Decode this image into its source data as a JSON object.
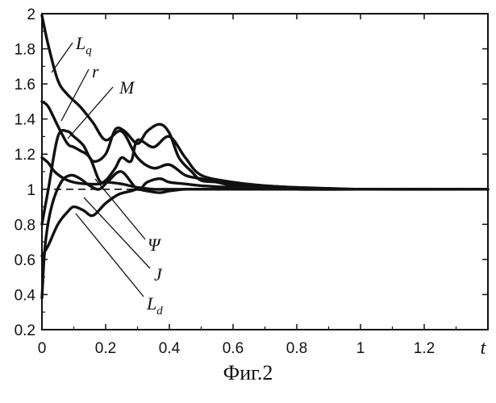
{
  "caption": "Фиг.2",
  "chart_data": {
    "type": "line",
    "xlabel": "t",
    "ylabel": "",
    "xlim": [
      0,
      1.4
    ],
    "ylim": [
      0.2,
      2.0
    ],
    "xticks": [
      0,
      0.2,
      0.4,
      0.6,
      0.8,
      1,
      1.2
    ],
    "xtick_labels": [
      "0",
      "0.2",
      "0.4",
      "0.6",
      "0.8",
      "1",
      "1.2"
    ],
    "yticks": [
      0.2,
      0.4,
      0.6,
      0.8,
      1,
      1.2,
      1.4,
      1.6,
      1.8,
      2
    ],
    "ytick_labels": [
      "0.2",
      "0.4",
      "0.6",
      "0.8",
      "1",
      "1.2",
      "1.4",
      "1.6",
      "1.8",
      "2"
    ],
    "reference_line": {
      "y": 1,
      "style": "dashed"
    },
    "series": [
      {
        "name": "L_q",
        "label_main": "L",
        "label_sub": "q",
        "x": [
          0,
          0.02,
          0.05,
          0.08,
          0.12,
          0.16,
          0.2,
          0.25,
          0.3,
          0.35,
          0.4,
          0.45,
          0.5,
          0.55,
          0.6,
          0.7,
          0.8,
          0.9,
          1.0,
          1.2,
          1.4
        ],
        "y": [
          1.99,
          1.82,
          1.62,
          1.54,
          1.47,
          1.38,
          1.28,
          1.33,
          1.18,
          1.12,
          1.14,
          1.08,
          1.06,
          1.04,
          1.03,
          1.02,
          1.01,
          1.005,
          1.0,
          1.0,
          1.0
        ]
      },
      {
        "name": "r",
        "label_main": "r",
        "label_sub": "",
        "x": [
          0,
          0.02,
          0.05,
          0.08,
          0.1,
          0.12,
          0.15,
          0.18,
          0.2,
          0.23,
          0.25,
          0.28,
          0.3,
          0.35,
          0.4,
          0.45,
          0.5,
          0.6,
          0.7,
          0.8,
          1.0,
          1.4
        ],
        "y": [
          1.5,
          1.47,
          1.36,
          1.26,
          1.24,
          1.22,
          1.18,
          1.05,
          1.05,
          1.12,
          1.18,
          1.16,
          1.28,
          1.24,
          1.3,
          1.18,
          1.08,
          1.04,
          1.02,
          1.01,
          1.0,
          1.0
        ]
      },
      {
        "name": "M",
        "label_main": "M",
        "label_sub": "",
        "x": [
          0,
          0.02,
          0.05,
          0.08,
          0.1,
          0.13,
          0.16,
          0.2,
          0.23,
          0.26,
          0.3,
          0.33,
          0.37,
          0.4,
          0.43,
          0.47,
          0.5,
          0.55,
          0.6,
          0.7,
          0.8,
          1.0,
          1.4
        ],
        "y": [
          0.8,
          1.0,
          1.3,
          1.33,
          1.3,
          1.25,
          1.16,
          1.2,
          1.34,
          1.33,
          1.26,
          1.33,
          1.37,
          1.32,
          1.18,
          1.1,
          1.05,
          1.04,
          1.02,
          1.01,
          1.0,
          1.0,
          1.0
        ]
      },
      {
        "name": "Ψ",
        "label_main": "Ψ",
        "label_sub": "",
        "x": [
          0,
          0.02,
          0.04,
          0.07,
          0.1,
          0.14,
          0.18,
          0.2,
          0.25,
          0.3,
          0.35,
          0.4,
          0.5,
          0.6,
          0.8,
          1.0,
          1.4
        ],
        "y": [
          1.18,
          1.15,
          1.1,
          1.06,
          1.04,
          1.03,
          1.03,
          1.04,
          1.03,
          1.01,
          1.0,
          1.0,
          1.0,
          1.0,
          1.0,
          1.0,
          1.0
        ]
      },
      {
        "name": "J",
        "label_main": "J",
        "label_sub": "",
        "x": [
          0,
          0.01,
          0.03,
          0.06,
          0.09,
          0.12,
          0.15,
          0.18,
          0.21,
          0.25,
          0.3,
          0.33,
          0.37,
          0.4,
          0.45,
          0.5,
          0.6,
          0.8,
          1.0,
          1.4
        ],
        "y": [
          0.38,
          0.68,
          0.9,
          1.04,
          1.08,
          1.06,
          1.02,
          1.0,
          1.05,
          1.1,
          1.0,
          1.04,
          1.06,
          1.04,
          1.03,
          1.02,
          1.01,
          1.0,
          1.0,
          1.0
        ]
      },
      {
        "name": "L_d",
        "label_main": "L",
        "label_sub": "d",
        "x": [
          0,
          0.02,
          0.05,
          0.08,
          0.1,
          0.13,
          0.16,
          0.2,
          0.24,
          0.28,
          0.3,
          0.33,
          0.37,
          0.4,
          0.45,
          0.5,
          0.6,
          0.8,
          1.0,
          1.4
        ],
        "y": [
          0.62,
          0.68,
          0.8,
          0.87,
          0.9,
          0.88,
          0.85,
          0.92,
          0.97,
          0.99,
          1.0,
          0.99,
          0.98,
          0.99,
          1.0,
          1.0,
          1.0,
          1.0,
          1.0,
          1.0
        ]
      }
    ]
  }
}
